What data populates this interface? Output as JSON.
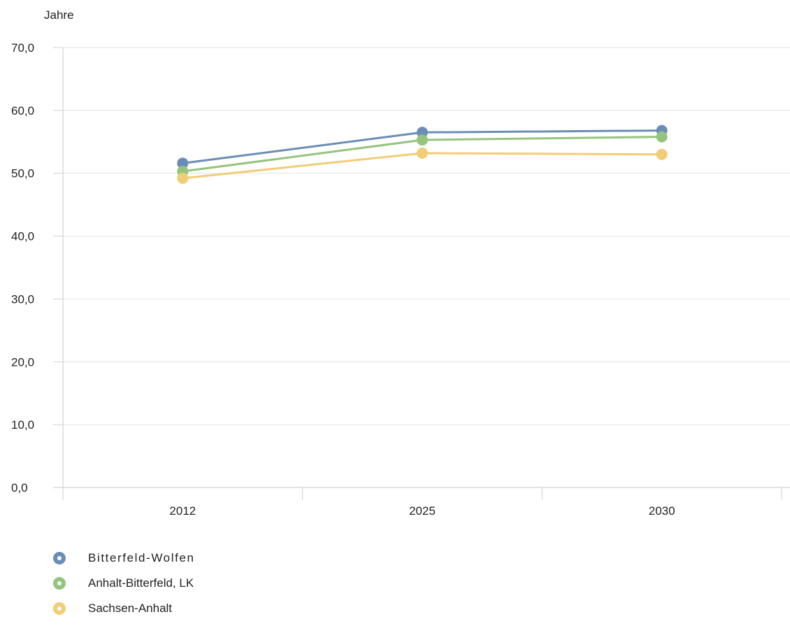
{
  "chart_data": {
    "type": "line",
    "title": "",
    "unit_label": "Jahre",
    "x": [
      "2012",
      "2025",
      "2030"
    ],
    "ylim": [
      0,
      70
    ],
    "yticks": [
      "0,0",
      "10,0",
      "20,0",
      "30,0",
      "40,0",
      "50,0",
      "60,0",
      "70,0"
    ],
    "grid": true,
    "legend_position": "bottom-left",
    "series": [
      {
        "name": "Bitterfeld-Wolfen",
        "color": "#6b8db5",
        "values": [
          51.6,
          56.5,
          56.8
        ]
      },
      {
        "name": "Anhalt-Bitterfeld, LK",
        "color": "#94c47d",
        "values": [
          50.3,
          55.3,
          55.8
        ]
      },
      {
        "name": "Sachsen-Anhalt",
        "color": "#f1cd75",
        "values": [
          49.2,
          53.2,
          53.0
        ]
      }
    ]
  }
}
